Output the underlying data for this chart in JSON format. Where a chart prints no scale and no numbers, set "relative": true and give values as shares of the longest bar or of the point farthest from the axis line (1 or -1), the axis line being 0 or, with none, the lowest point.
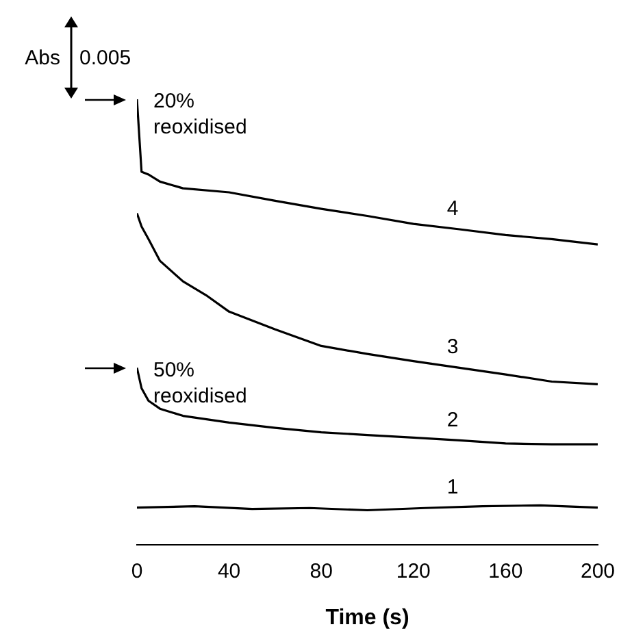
{
  "chart_data": {
    "type": "line",
    "relative": true,
    "xlabel": "Time (s)",
    "xlim": [
      0,
      200
    ],
    "xticks": [
      0,
      40,
      80,
      120,
      160,
      200
    ],
    "grid": false,
    "legend": false,
    "marker": "none",
    "line_style": "solid",
    "annotations": [
      "Abs",
      "0.005",
      {
        "text": "20% reoxidised",
        "x": 0,
        "y": 1.0
      },
      {
        "text": "50% reoxidised",
        "x": 0,
        "y": 0.397
      }
    ],
    "series": [
      {
        "name": "1",
        "color": "#000000",
        "x": [
          0,
          25,
          50,
          75,
          100,
          125,
          150,
          175,
          200
        ],
        "values": [
          0.083,
          0.086,
          0.08,
          0.082,
          0.077,
          0.082,
          0.086,
          0.088,
          0.083
        ]
      },
      {
        "name": "2",
        "color": "#000000",
        "x": [
          0,
          2,
          5,
          10,
          20,
          40,
          60,
          80,
          100,
          120,
          140,
          160,
          180,
          200
        ],
        "values": [
          0.397,
          0.351,
          0.323,
          0.305,
          0.289,
          0.274,
          0.262,
          0.252,
          0.246,
          0.24,
          0.234,
          0.227,
          0.225,
          0.225
        ]
      },
      {
        "name": "3",
        "color": "#000000",
        "x": [
          0,
          2,
          5,
          10,
          20,
          30,
          40,
          60,
          80,
          100,
          120,
          140,
          160,
          180,
          200
        ],
        "values": [
          0.744,
          0.714,
          0.686,
          0.637,
          0.591,
          0.56,
          0.523,
          0.483,
          0.446,
          0.428,
          0.412,
          0.397,
          0.382,
          0.366,
          0.36
        ]
      },
      {
        "name": "4",
        "color": "#000000",
        "x": [
          0,
          2,
          5,
          10,
          20,
          40,
          60,
          80,
          100,
          120,
          140,
          160,
          180,
          200
        ],
        "values": [
          1.0,
          0.837,
          0.831,
          0.815,
          0.8,
          0.791,
          0.772,
          0.754,
          0.738,
          0.72,
          0.708,
          0.695,
          0.686,
          0.674
        ]
      }
    ]
  }
}
